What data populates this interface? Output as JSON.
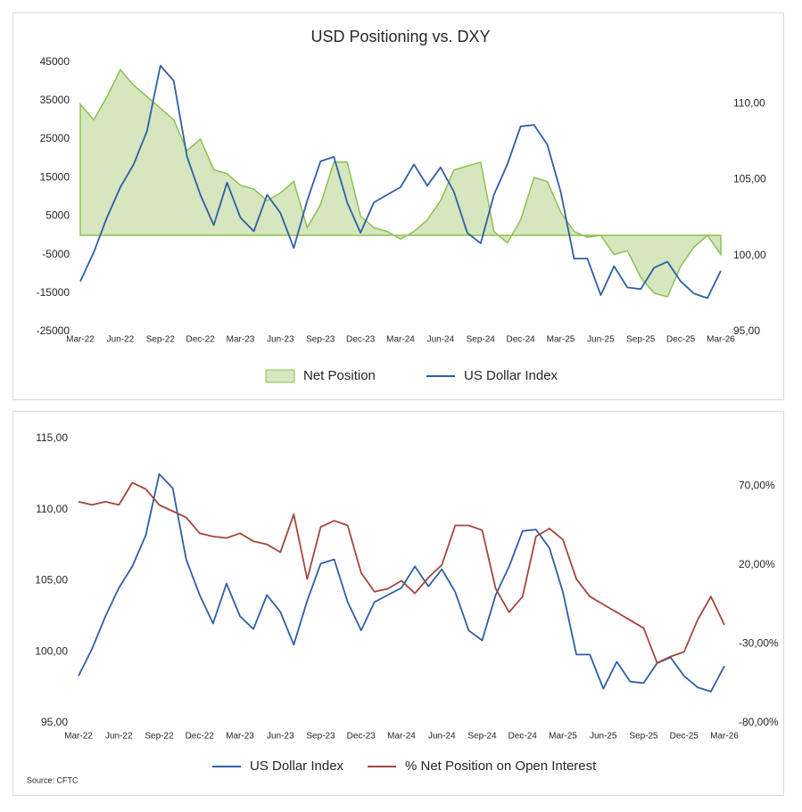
{
  "source": "Source: CFTC",
  "chart_data": [
    {
      "type": "combo",
      "title": "USD Positioning vs. DXY",
      "categories": [
        "Mar-22",
        null,
        null,
        "Jun-22",
        null,
        null,
        "Sep-22",
        null,
        null,
        "Dec-22",
        null,
        null,
        "Mar-23",
        null,
        null,
        "Jun-23",
        null,
        null,
        "Sep-23",
        null,
        null,
        "Dec-23",
        null,
        null,
        "Mar-24",
        null,
        null,
        "Jun-24",
        null,
        null,
        "Sep-24",
        null,
        null,
        "Dec-24",
        null,
        null,
        "Mar-25",
        null,
        null,
        "Jun-25",
        null,
        null,
        "Sep-25",
        null,
        null,
        "Dec-25",
        null,
        null,
        "Mar-26"
      ],
      "series": [
        {
          "name": "Net Position",
          "type": "area",
          "axis": "y",
          "color": "#8cc152",
          "fill_color": "#d6e6be",
          "values": [
            34000,
            30000,
            36000,
            43000,
            39000,
            36000,
            33000,
            30000,
            22000,
            25000,
            17000,
            16000,
            13000,
            12000,
            9000,
            11000,
            14000,
            2000,
            8000,
            19000,
            19000,
            5000,
            2000,
            1000,
            -1000,
            1000,
            4000,
            9000,
            17000,
            18000,
            19000,
            1000,
            -2000,
            4000,
            15000,
            14000,
            6000,
            1000,
            -500,
            0,
            -5000,
            -4000,
            -11000,
            -15000,
            -16000,
            -8000,
            -3000,
            0,
            -5000
          ]
        },
        {
          "name": "US Dollar Index",
          "type": "line",
          "axis": "y2",
          "color": "#2f5fa7",
          "values": [
            98.3,
            100.2,
            102.5,
            104.5,
            106.0,
            108.2,
            112.5,
            111.5,
            106.5,
            104.0,
            102.0,
            104.8,
            102.5,
            101.6,
            104.0,
            102.8,
            100.5,
            103.6,
            106.2,
            106.5,
            103.5,
            101.5,
            103.5,
            104.0,
            104.5,
            106.0,
            104.6,
            105.8,
            104.2,
            101.5,
            100.8,
            104.0,
            106.0,
            108.5,
            108.6,
            107.3,
            104.2,
            99.8,
            99.8,
            97.4,
            99.3,
            97.9,
            97.8,
            99.2,
            99.6,
            98.3,
            97.5,
            97.2,
            99.0
          ]
        }
      ],
      "ylim": [
        -25000,
        50000
      ],
      "yticks": [
        -25000,
        -15000,
        -5000,
        5000,
        15000,
        25000,
        35000,
        45000
      ],
      "y2lim": [
        95,
        114
      ],
      "y2ticks": [
        {
          "value": 95,
          "label": "95,00"
        },
        {
          "value": 100,
          "label": "100,00"
        },
        {
          "value": 105,
          "label": "105,00"
        },
        {
          "value": 110,
          "label": "110,00"
        }
      ],
      "grid": false,
      "legend": "bottom"
    },
    {
      "type": "combo",
      "categories": [
        "Mar-22",
        null,
        null,
        "Jun-22",
        null,
        null,
        "Sep-22",
        null,
        null,
        "Dec-22",
        null,
        null,
        "Mar-23",
        null,
        null,
        "Jun-23",
        null,
        null,
        "Sep-23",
        null,
        null,
        "Dec-23",
        null,
        null,
        "Mar-24",
        null,
        null,
        "Jun-24",
        null,
        null,
        "Sep-24",
        null,
        null,
        "Dec-24",
        null,
        null,
        "Mar-25",
        null,
        null,
        "Jun-25",
        null,
        null,
        "Sep-25",
        null,
        null,
        "Dec-25",
        null,
        null,
        "Mar-26"
      ],
      "series": [
        {
          "name": "US Dollar Index",
          "type": "line",
          "axis": "y",
          "color": "#2f5fa7",
          "values": [
            98.3,
            100.2,
            102.5,
            104.5,
            106.0,
            108.2,
            112.5,
            111.5,
            106.5,
            104.0,
            102.0,
            104.8,
            102.5,
            101.6,
            104.0,
            102.8,
            100.5,
            103.6,
            106.2,
            106.5,
            103.5,
            101.5,
            103.5,
            104.0,
            104.5,
            106.0,
            104.6,
            105.8,
            104.2,
            101.5,
            100.8,
            104.0,
            106.0,
            108.5,
            108.6,
            107.3,
            104.2,
            99.8,
            99.8,
            97.4,
            99.3,
            97.9,
            97.8,
            99.2,
            99.6,
            98.3,
            97.5,
            97.2,
            99.0
          ]
        },
        {
          "name": "% Net Position on Open Interest",
          "type": "line",
          "axis": "y2",
          "color": "#a3463d",
          "values": [
            60,
            58,
            60,
            58,
            72,
            68,
            58,
            54,
            50,
            40,
            38,
            37,
            40,
            35,
            33,
            28,
            52,
            11,
            44,
            48,
            45,
            15,
            3,
            5,
            10,
            2,
            12,
            20,
            45,
            45,
            42,
            5,
            -10,
            0,
            38,
            43,
            36,
            11,
            0,
            -5,
            -10,
            -15,
            -20,
            -42,
            -38,
            -35,
            -15,
            0,
            -18
          ]
        }
      ],
      "ylim": [
        95,
        115
      ],
      "yticks": [
        {
          "value": 95,
          "label": "95,00"
        },
        {
          "value": 100,
          "label": "100,00"
        },
        {
          "value": 105,
          "label": "105,00"
        },
        {
          "value": 110,
          "label": "110,00"
        },
        {
          "value": 115,
          "label": "115,00"
        }
      ],
      "y2lim": [
        -80,
        100
      ],
      "y2ticks": [
        {
          "value": -80,
          "label": "-80,00%"
        },
        {
          "value": -30,
          "label": "-30,00%"
        },
        {
          "value": 20,
          "label": "20,00%"
        },
        {
          "value": 70,
          "label": "70,00%"
        }
      ],
      "grid": false,
      "legend": "bottom"
    }
  ]
}
